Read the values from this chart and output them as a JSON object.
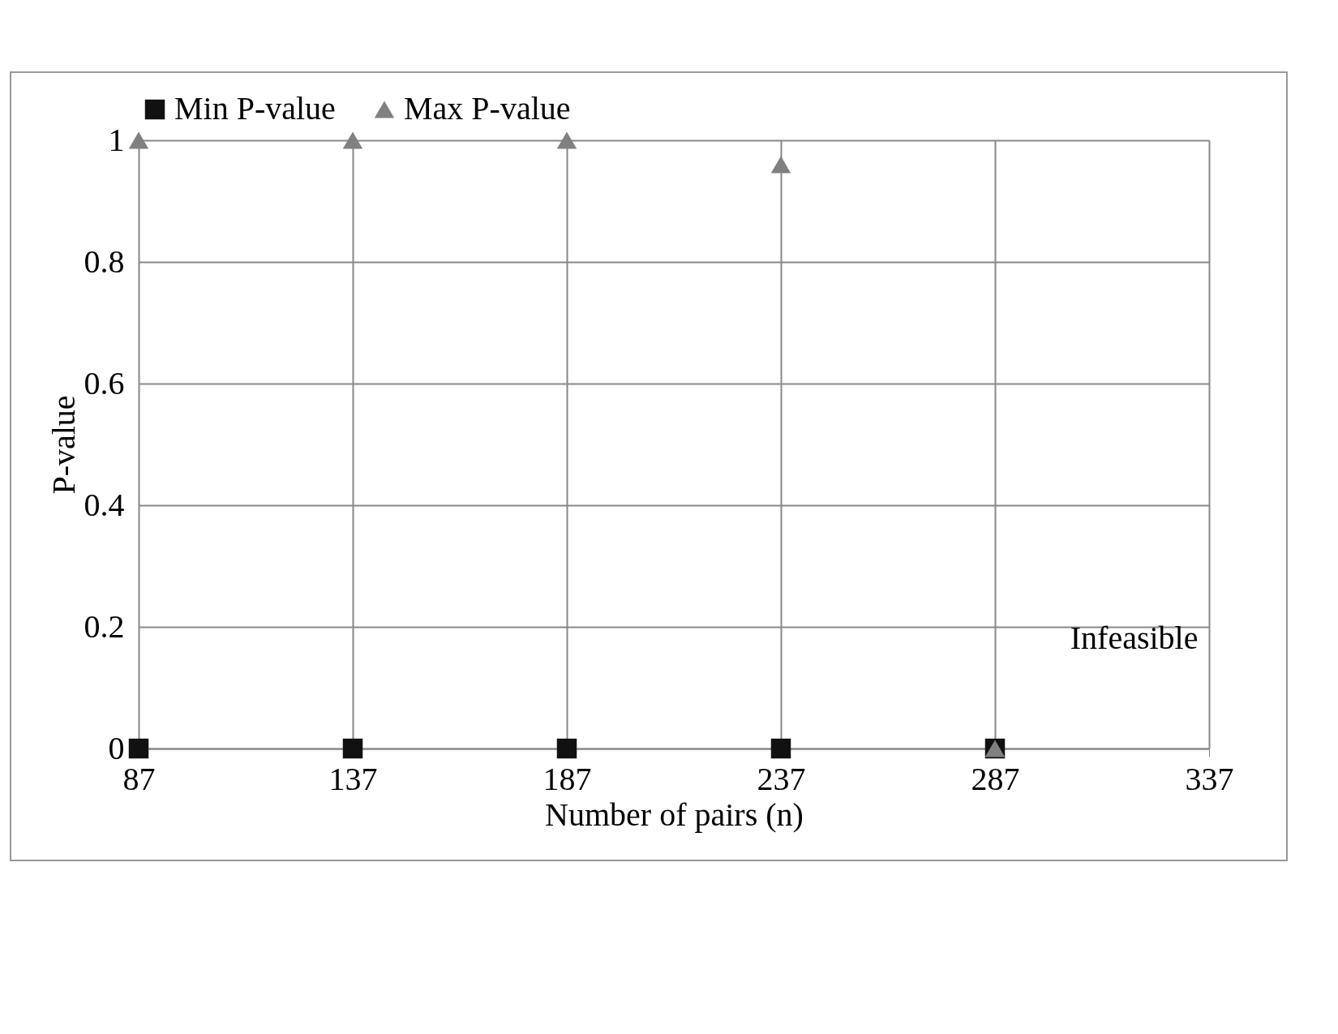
{
  "chart_data": {
    "type": "scatter",
    "xlabel": "Number of pairs (n)",
    "ylabel": "P-value",
    "x": [
      87,
      137,
      187,
      237,
      287
    ],
    "series": [
      {
        "name": "Min P-value",
        "color": "#111111",
        "marker": "square",
        "values": [
          0,
          0,
          0,
          0,
          0
        ]
      },
      {
        "name": "Max P-value",
        "color": "#808080",
        "marker": "triangle",
        "values": [
          1,
          1,
          1,
          0.96,
          0
        ]
      }
    ],
    "xlim": [
      87,
      337
    ],
    "xticks": [
      87,
      137,
      187,
      237,
      287,
      337
    ],
    "ylim": [
      0,
      1
    ],
    "yticks": [
      0,
      0.2,
      0.4,
      0.6,
      0.8,
      1
    ],
    "grid": true,
    "legend": "top",
    "annotations": [
      "Infeasible"
    ]
  }
}
